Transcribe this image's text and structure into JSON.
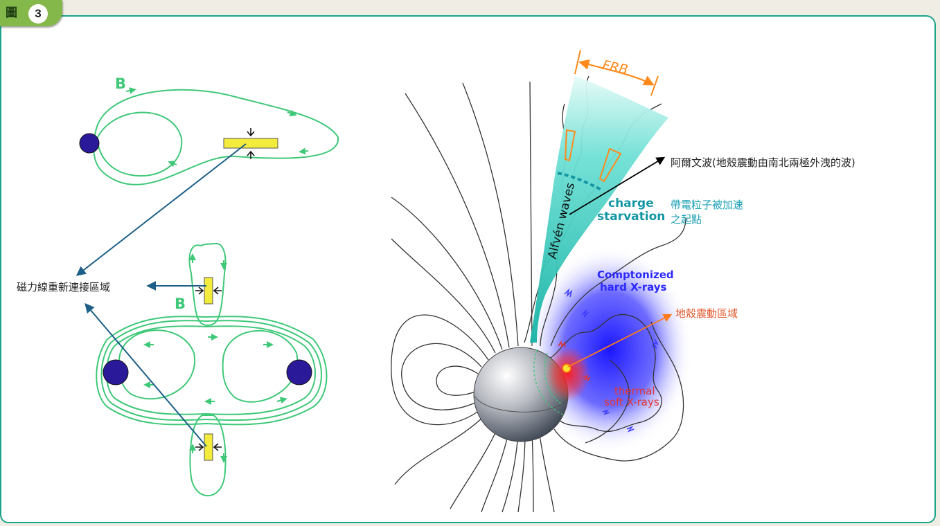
{
  "figure_label": {
    "prefix": "圖",
    "number": "3"
  },
  "left_diagram": {
    "field_label_top": "B",
    "field_label_bottom": "B",
    "reconnection_label": "磁力線重新連接區域"
  },
  "right_diagram": {
    "frb_label": "FRB",
    "alfven_label": "Alfvén waves",
    "charge_label_line1": "charge",
    "charge_label_line2": "starvation",
    "comptonized_line1": "Comptonized",
    "comptonized_line2": "hard X-rays",
    "thermal_line1": "thermal",
    "thermal_line2": "soft X-rays",
    "annotation_alfven": "阿爾文波(地殼震動由南北兩極外洩的波)",
    "annotation_charge_line1": "帶電粒子被加速",
    "annotation_charge_line2": "之起點",
    "annotation_quake": "地殼震動區域"
  },
  "colors": {
    "frame": "#1aa489",
    "tab": "#85b84a",
    "field_line_green": "#3ec878",
    "star_purple": "#2a1a9a",
    "reconnect_yellow": "#f4ec3c",
    "arrow_blue": "#1d5f86",
    "cyan_beam": "#21bdb0",
    "frb_orange": "#ff8a1a",
    "xray_blue": "#2d2aff",
    "quake_red": "#e3342f"
  }
}
